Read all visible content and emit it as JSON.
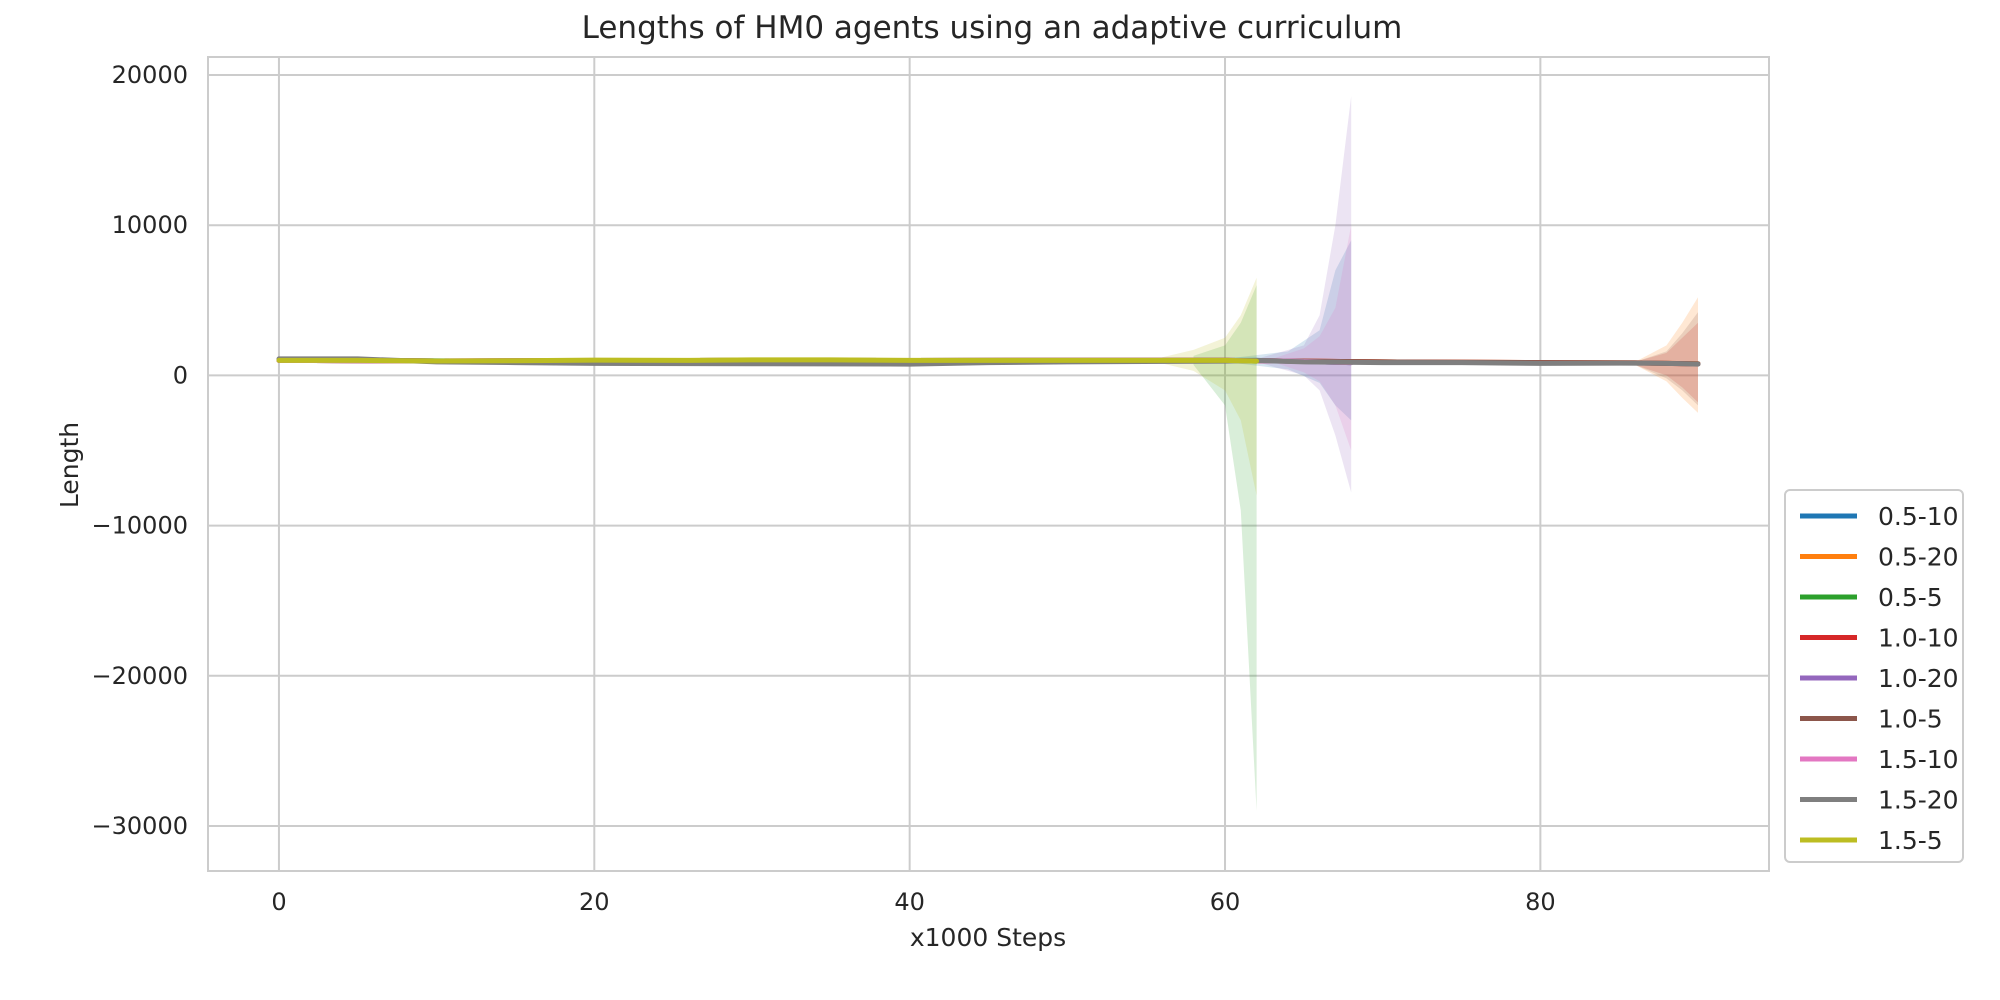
{
  "chart_data": {
    "type": "line",
    "title": "Lengths of HM0 agents using an adaptive curriculum",
    "xlabel": "x1000 Steps",
    "ylabel": "Length",
    "xlim": [
      -4.5,
      94.5
    ],
    "ylim": [
      -33000,
      21200
    ],
    "xticks": [
      0,
      20,
      40,
      60,
      80
    ],
    "yticks": [
      -30000,
      -20000,
      -10000,
      0,
      10000,
      20000
    ],
    "ytick_labels": [
      "−30000",
      "−20000",
      "−10000",
      "0",
      "10000",
      "20000"
    ],
    "grid": true,
    "legend_position": "lower-right outside",
    "series": [
      {
        "name": "0.5-10",
        "color": "#1f77b4",
        "x": [
          0,
          6,
          12,
          20,
          30,
          40,
          50,
          60,
          62,
          64,
          66,
          68
        ],
        "y": [
          1000,
          980,
          960,
          980,
          1000,
          990,
          1000,
          1000,
          1000,
          950,
          900,
          850
        ],
        "band_x": [
          60,
          64,
          66,
          67,
          68
        ],
        "band_upper": [
          1100,
          1600,
          3000,
          7000,
          9000
        ],
        "band_lower": [
          900,
          400,
          -500,
          -2000,
          -3000
        ]
      },
      {
        "name": "0.5-20",
        "color": "#ff7f0e",
        "x": [
          0,
          10,
          20,
          30,
          40,
          50,
          60,
          70,
          80,
          86,
          88,
          90
        ],
        "y": [
          1000,
          960,
          980,
          1000,
          990,
          1000,
          1000,
          900,
          850,
          830,
          800,
          780
        ],
        "band_x": [
          86,
          88,
          89,
          90
        ],
        "band_upper": [
          900,
          2000,
          3500,
          5200
        ],
        "band_lower": [
          700,
          -400,
          -1500,
          -2500
        ]
      },
      {
        "name": "0.5-5",
        "color": "#2ca02c",
        "x": [
          0,
          6,
          12,
          20,
          30,
          40,
          50,
          58,
          60,
          62
        ],
        "y": [
          1050,
          1000,
          950,
          980,
          1000,
          990,
          1000,
          1000,
          1000,
          950
        ],
        "band_x": [
          58,
          60,
          61,
          62
        ],
        "band_upper": [
          1300,
          2000,
          3500,
          6000
        ],
        "band_lower": [
          700,
          -2000,
          -9000,
          -29000
        ]
      },
      {
        "name": "1.0-10",
        "color": "#d62728",
        "x": [
          0,
          10,
          20,
          30,
          40,
          50,
          60,
          70,
          80,
          86,
          88,
          90
        ],
        "y": [
          1000,
          960,
          980,
          1000,
          990,
          1000,
          1000,
          900,
          850,
          830,
          800,
          760
        ],
        "band_x": [
          86,
          88,
          89,
          90
        ],
        "band_upper": [
          900,
          1500,
          2500,
          3500
        ],
        "band_lower": [
          700,
          0,
          -800,
          -1800
        ]
      },
      {
        "name": "1.0-20",
        "color": "#9467bd",
        "x": [
          0,
          10,
          20,
          30,
          40,
          50,
          60,
          64,
          66,
          68
        ],
        "y": [
          1000,
          960,
          980,
          1000,
          990,
          1000,
          1000,
          950,
          900,
          850
        ],
        "band_x": [
          62,
          65,
          66,
          67,
          68
        ],
        "band_upper": [
          1100,
          2000,
          4000,
          10000,
          18600
        ],
        "band_lower": [
          900,
          0,
          -1000,
          -4000,
          -7800
        ]
      },
      {
        "name": "1.0-5",
        "color": "#8c564b",
        "x": [
          0,
          10,
          20,
          30,
          40,
          50,
          60,
          70,
          80,
          86,
          88,
          90
        ],
        "y": [
          1000,
          960,
          980,
          1000,
          990,
          1000,
          1000,
          900,
          850,
          830,
          800,
          770
        ],
        "band_x": [
          86,
          88,
          89,
          90
        ],
        "band_upper": [
          900,
          1600,
          2800,
          4200
        ],
        "band_lower": [
          700,
          -200,
          -1000,
          -2000
        ]
      },
      {
        "name": "1.5-10",
        "color": "#e377c2",
        "x": [
          0,
          10,
          20,
          30,
          40,
          50,
          60,
          64,
          66,
          68
        ],
        "y": [
          1000,
          960,
          980,
          1000,
          990,
          1000,
          1000,
          950,
          900,
          850
        ],
        "band_x": [
          63,
          65,
          66,
          67,
          68
        ],
        "band_upper": [
          1100,
          1800,
          2600,
          4500,
          10000
        ],
        "band_lower": [
          900,
          200,
          -400,
          -2000,
          -5000
        ]
      },
      {
        "name": "1.5-20",
        "color": "#7f7f7f",
        "x": [
          0,
          5,
          10,
          15,
          20,
          30,
          40,
          45,
          50,
          60,
          62,
          65,
          70,
          75,
          80,
          85,
          88,
          90
        ],
        "y": [
          1100,
          1100,
          900,
          850,
          800,
          780,
          750,
          850,
          900,
          950,
          1000,
          900,
          850,
          850,
          800,
          820,
          800,
          750
        ],
        "band_x": [],
        "band_upper": [],
        "band_lower": []
      },
      {
        "name": "1.5-5",
        "color": "#bcbd22",
        "x": [
          0,
          5,
          10,
          15,
          20,
          26,
          30,
          35,
          40,
          45,
          50,
          55,
          60,
          62
        ],
        "y": [
          1000,
          1000,
          960,
          980,
          1020,
          1000,
          1030,
          1030,
          1000,
          1000,
          1000,
          1000,
          1000,
          950
        ],
        "band_x": [
          56,
          58,
          60,
          61,
          62
        ],
        "band_upper": [
          1200,
          1700,
          2500,
          4000,
          6500
        ],
        "band_lower": [
          800,
          300,
          -1000,
          -3000,
          -8000
        ]
      }
    ]
  }
}
